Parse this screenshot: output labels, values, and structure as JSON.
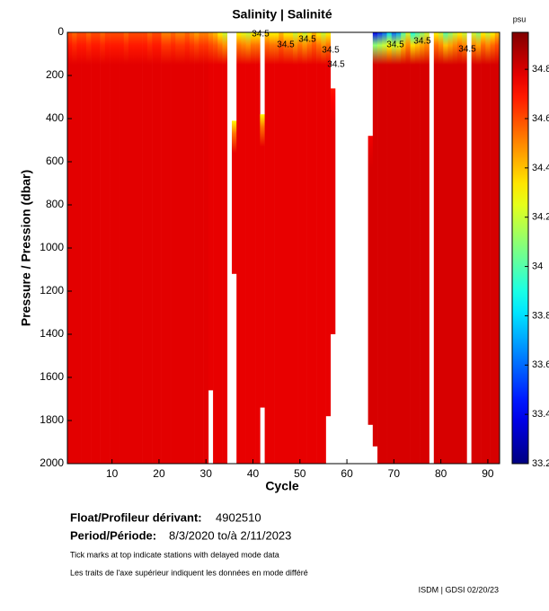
{
  "chart_data": {
    "type": "section",
    "title": "Salinity | Salinité",
    "colorbar_label": "psu",
    "ylabel": "Pressure / Pression (dbar)",
    "xlabel": "Cycle",
    "xlim": [
      0.5,
      92.5
    ],
    "xticks": [
      10,
      20,
      30,
      40,
      50,
      60,
      70,
      80,
      90
    ],
    "ylim": [
      0,
      2000
    ],
    "yticks": [
      0,
      200,
      400,
      600,
      800,
      1000,
      1200,
      1400,
      1600,
      1800,
      2000
    ],
    "clim": [
      33.2,
      34.95
    ],
    "cticks": [
      33.2,
      33.4,
      33.6,
      33.8,
      34,
      34.2,
      34.4,
      34.6,
      34.8
    ],
    "x": [
      1,
      2,
      3,
      4,
      5,
      6,
      7,
      8,
      9,
      10,
      11,
      12,
      13,
      14,
      15,
      16,
      17,
      18,
      19,
      20,
      21,
      22,
      23,
      24,
      25,
      26,
      27,
      28,
      29,
      30,
      31,
      32,
      33,
      34,
      35,
      36,
      37,
      38,
      39,
      40,
      41,
      42,
      43,
      44,
      45,
      46,
      47,
      48,
      49,
      50,
      51,
      52,
      53,
      54,
      55,
      56,
      57,
      58,
      59,
      60,
      61,
      62,
      63,
      64,
      65,
      66,
      67,
      68,
      69,
      70,
      71,
      72,
      73,
      74,
      75,
      76,
      77,
      78,
      79,
      80,
      81,
      82,
      83,
      84,
      85,
      86,
      87,
      88,
      89,
      90,
      91,
      92
    ],
    "top_pressure": [
      0,
      0,
      0,
      0,
      0,
      0,
      0,
      0,
      0,
      0,
      0,
      0,
      0,
      0,
      0,
      0,
      0,
      0,
      0,
      0,
      0,
      0,
      0,
      0,
      0,
      0,
      0,
      0,
      0,
      0,
      0,
      0,
      0,
      0,
      null,
      410,
      0,
      0,
      0,
      0,
      0,
      380,
      0,
      0,
      0,
      0,
      0,
      0,
      0,
      0,
      0,
      0,
      0,
      0,
      0,
      0,
      260,
      null,
      null,
      null,
      null,
      null,
      null,
      null,
      480,
      0,
      0,
      0,
      0,
      0,
      0,
      0,
      0,
      0,
      0,
      0,
      0,
      null,
      0,
      0,
      0,
      0,
      0,
      0,
      0,
      null,
      0,
      0,
      0,
      0,
      0,
      0
    ],
    "bottom_pressure": [
      2000,
      2000,
      2000,
      2000,
      2000,
      2000,
      2000,
      2000,
      2000,
      2000,
      2000,
      2000,
      2000,
      2000,
      2000,
      2000,
      2000,
      2000,
      2000,
      2000,
      2000,
      2000,
      2000,
      2000,
      2000,
      2000,
      2000,
      2000,
      2000,
      2000,
      1660,
      2000,
      2000,
      2000,
      null,
      1120,
      2000,
      2000,
      2000,
      2000,
      2000,
      1740,
      2000,
      2000,
      2000,
      2000,
      2000,
      2000,
      2000,
      2000,
      2000,
      2000,
      2000,
      2000,
      2000,
      1780,
      1400,
      null,
      null,
      null,
      null,
      null,
      null,
      null,
      1820,
      1920,
      2000,
      2000,
      2000,
      2000,
      2000,
      2000,
      2000,
      2000,
      2000,
      2000,
      2000,
      null,
      2000,
      2000,
      2000,
      2000,
      2000,
      2000,
      2000,
      null,
      2000,
      2000,
      2000,
      2000,
      2000,
      2000
    ],
    "surface_salinity": [
      34.6,
      34.55,
      34.6,
      34.6,
      34.55,
      34.6,
      34.6,
      34.55,
      34.6,
      34.6,
      34.6,
      34.6,
      34.55,
      34.6,
      34.6,
      34.6,
      34.6,
      34.55,
      34.6,
      34.6,
      34.5,
      34.5,
      34.55,
      34.5,
      34.5,
      34.55,
      34.5,
      34.45,
      34.5,
      34.5,
      34.45,
      34.4,
      34.3,
      34.2,
      null,
      34.3,
      34.3,
      34.25,
      34.2,
      34.3,
      34.3,
      34.3,
      34.35,
      34.3,
      34.3,
      34.4,
      34.3,
      34.3,
      34.2,
      34.3,
      34.2,
      34.3,
      34.4,
      34.3,
      34.2,
      34.3,
      34.7,
      null,
      null,
      null,
      null,
      null,
      null,
      null,
      34.75,
      33.4,
      33.5,
      33.6,
      33.8,
      33.6,
      33.7,
      34,
      34.2,
      33.9,
      34,
      34.1,
      34.2,
      null,
      34.3,
      34.2,
      34,
      34.1,
      34.2,
      34.3,
      34.2,
      null,
      34.2,
      34.1,
      34.3,
      34.2,
      34.3,
      34.4
    ],
    "deep_salinity": [
      34.78,
      34.78,
      34.78,
      34.78,
      34.78,
      34.78,
      34.78,
      34.78,
      34.78,
      34.78,
      34.78,
      34.78,
      34.78,
      34.78,
      34.78,
      34.78,
      34.78,
      34.78,
      34.78,
      34.78,
      34.78,
      34.78,
      34.78,
      34.78,
      34.78,
      34.78,
      34.78,
      34.78,
      34.78,
      34.78,
      34.77,
      34.77,
      34.77,
      34.77,
      null,
      34.77,
      34.77,
      34.77,
      34.77,
      34.77,
      34.77,
      34.77,
      34.77,
      34.77,
      34.77,
      34.77,
      34.77,
      34.77,
      34.77,
      34.77,
      34.77,
      34.77,
      34.77,
      34.77,
      34.77,
      34.77,
      34.77,
      null,
      null,
      null,
      null,
      null,
      null,
      null,
      34.8,
      34.8,
      34.8,
      34.8,
      34.8,
      34.8,
      34.8,
      34.8,
      34.8,
      34.8,
      34.8,
      34.8,
      34.8,
      null,
      34.8,
      34.8,
      34.8,
      34.8,
      34.8,
      34.8,
      34.8,
      null,
      34.8,
      34.8,
      34.8,
      34.8,
      34.8,
      34.8
    ],
    "annotations": [
      "34.5",
      "34.5",
      "34.5",
      "34.5",
      "34.5",
      "34.5",
      "34.5",
      "34.5"
    ]
  },
  "info": {
    "float_label": "Float/Profileur dérivant:",
    "float_id": "4902510",
    "period_label": "Period/Période:",
    "period": "8/3/2020  to/à  2/11/2023",
    "note_en": "Tick marks at top indicate stations with delayed mode data",
    "note_fr": "Les traits de l'axe supérieur indiquent les données en mode différé",
    "credit": "ISDM | GDSI 02/20/23"
  }
}
